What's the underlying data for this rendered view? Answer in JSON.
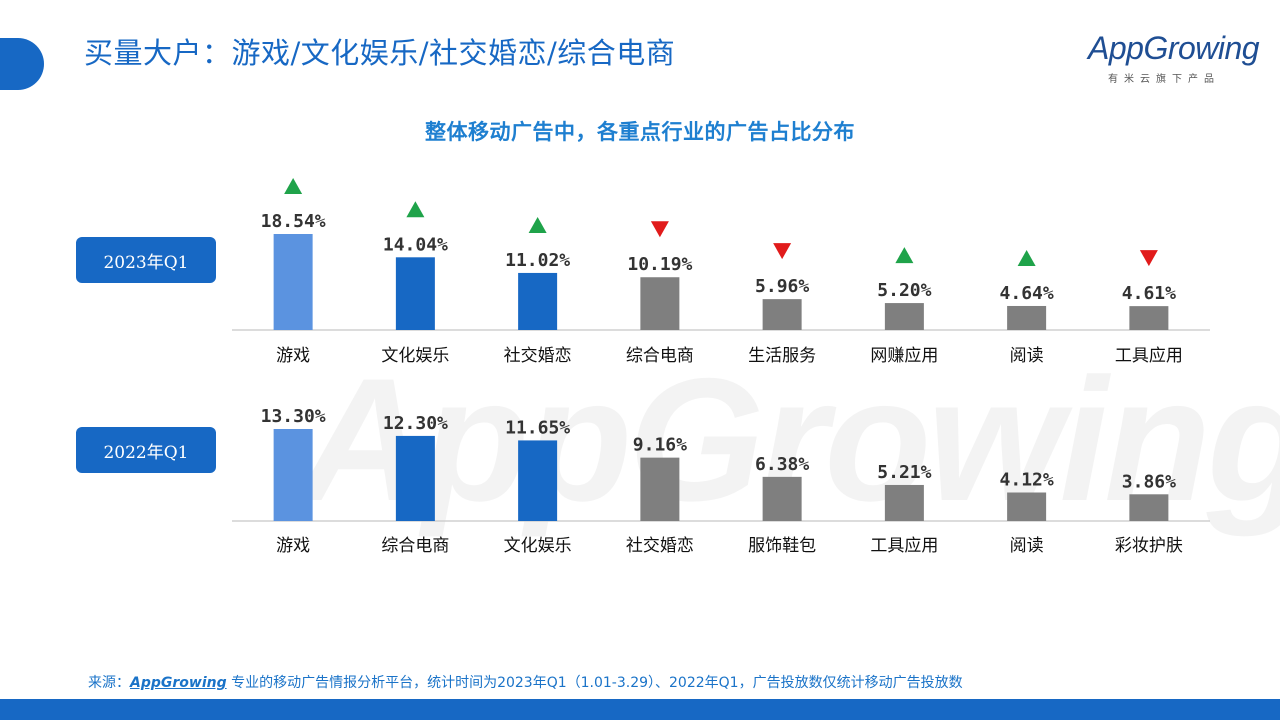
{
  "slide_title": "买量大户：游戏/文化娱乐/社交婚恋/综合电商",
  "logo": {
    "word": "AppGrowing",
    "tagline": "有米云旗下产品"
  },
  "watermark": "AppGrowing",
  "footer": {
    "prefix": "来源：",
    "brand": "AppGrowing",
    "text": " 专业的移动广告情报分析平台，统计时间为2023年Q1（1.01-3.29）、2022年Q1，广告投放数仅统计移动广告投放数"
  },
  "colors": {
    "light_blue": "#5b93e0",
    "blue": "#1768c4",
    "gray": "#7f7f7f",
    "up": "#1fa34a",
    "down": "#e11b1b"
  },
  "chart_data": [
    {
      "type": "bar",
      "title": "整体移动广告中，各重点行业的广告占比分布",
      "period": "2023年Q1",
      "categories": [
        "游戏",
        "文化娱乐",
        "社交婚恋",
        "综合电商",
        "生活服务",
        "网赚应用",
        "阅读",
        "工具应用"
      ],
      "values": [
        18.54,
        14.04,
        11.02,
        10.19,
        5.96,
        5.2,
        4.64,
        4.61
      ],
      "labels": [
        "18.54%",
        "14.04%",
        "11.02%",
        "10.19%",
        "5.96%",
        "5.20%",
        "4.64%",
        "4.61%"
      ],
      "trend": [
        "up",
        "up",
        "up",
        "down",
        "down",
        "up",
        "up",
        "down"
      ],
      "bar_colors": [
        "light_blue",
        "blue",
        "blue",
        "gray",
        "gray",
        "gray",
        "gray",
        "gray"
      ],
      "unit": "%"
    },
    {
      "type": "bar",
      "period": "2022年Q1",
      "categories": [
        "游戏",
        "综合电商",
        "文化娱乐",
        "社交婚恋",
        "服饰鞋包",
        "工具应用",
        "阅读",
        "彩妆护肤"
      ],
      "values": [
        13.3,
        12.3,
        11.65,
        9.16,
        6.38,
        5.21,
        4.12,
        3.86
      ],
      "labels": [
        "13.30%",
        "12.30%",
        "11.65%",
        "9.16%",
        "6.38%",
        "5.21%",
        "4.12%",
        "3.86%"
      ],
      "bar_colors": [
        "light_blue",
        "blue",
        "blue",
        "gray",
        "gray",
        "gray",
        "gray",
        "gray"
      ],
      "unit": "%"
    }
  ]
}
